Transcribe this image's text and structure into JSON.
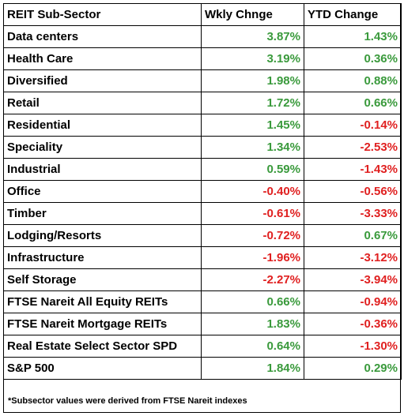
{
  "chart_data": {
    "type": "table",
    "columns": [
      "REIT Sub-Sector",
      "Wkly Chnge",
      "YTD Change"
    ],
    "rows": [
      {
        "sector": "Data centers",
        "weekly": "3.87%",
        "ytd": "1.43%"
      },
      {
        "sector": "Health Care",
        "weekly": "3.19%",
        "ytd": "0.36%"
      },
      {
        "sector": "Diversified",
        "weekly": "1.98%",
        "ytd": "0.88%"
      },
      {
        "sector": "Retail",
        "weekly": "1.72%",
        "ytd": "0.66%"
      },
      {
        "sector": "Residential",
        "weekly": "1.45%",
        "ytd": "-0.14%"
      },
      {
        "sector": "Speciality",
        "weekly": "1.34%",
        "ytd": "-2.53%"
      },
      {
        "sector": "Industrial",
        "weekly": "0.59%",
        "ytd": "-1.43%"
      },
      {
        "sector": "Office",
        "weekly": "-0.40%",
        "ytd": "-0.56%"
      },
      {
        "sector": "Timber",
        "weekly": "-0.61%",
        "ytd": "-3.33%"
      },
      {
        "sector": "Lodging/Resorts",
        "weekly": "-0.72%",
        "ytd": "0.67%"
      },
      {
        "sector": "Infrastructure",
        "weekly": "-1.96%",
        "ytd": "-3.12%"
      },
      {
        "sector": "Self Storage",
        "weekly": "-2.27%",
        "ytd": "-3.94%"
      },
      {
        "sector": "FTSE Nareit All Equity REITs",
        "weekly": "0.66%",
        "ytd": "-0.94%"
      },
      {
        "sector": "FTSE Nareit Mortgage REITs",
        "weekly": "1.83%",
        "ytd": "-0.36%"
      },
      {
        "sector": "Real Estate Select Sector SPD",
        "weekly": "0.64%",
        "ytd": "-1.30%"
      },
      {
        "sector": "S&P 500",
        "weekly": "1.84%",
        "ytd": "0.29%"
      }
    ],
    "footnote": "*Subsector values were derived from FTSE Nareit indexes",
    "colors": {
      "positive": "#3a9a3c",
      "negative": "#e02020"
    }
  }
}
